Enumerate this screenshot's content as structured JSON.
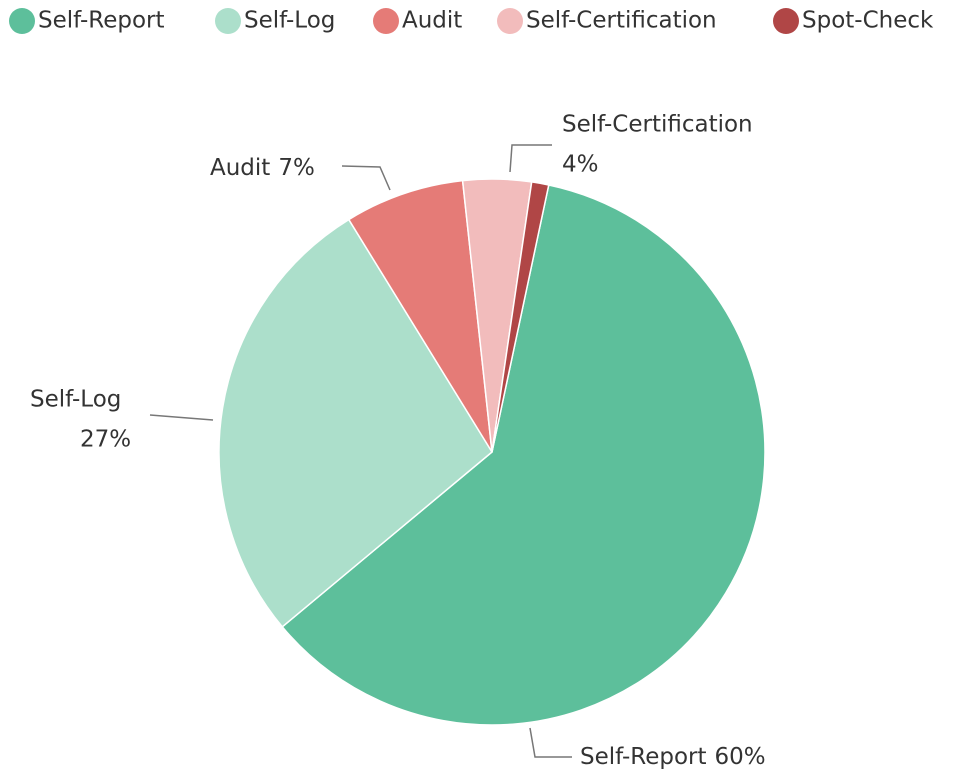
{
  "chart_data": {
    "type": "pie",
    "categories": [
      "Self-Report",
      "Self-Log",
      "Audit",
      "Self-Certification",
      "Spot-Check"
    ],
    "values": [
      60,
      27,
      7,
      4,
      1
    ],
    "value_labels": [
      "60%",
      "27%",
      "7%",
      "4%",
      null
    ],
    "colors": [
      "#5dbf9b",
      "#acdfcb",
      "#e57b77",
      "#f2bcbc",
      "#b04646"
    ],
    "legend": "top"
  }
}
